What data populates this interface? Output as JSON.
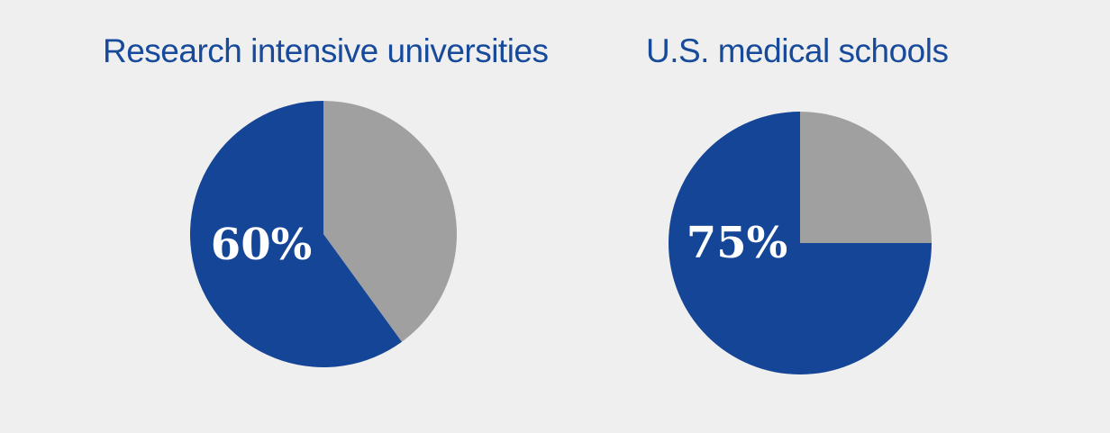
{
  "chart_data": [
    {
      "type": "pie",
      "title": "Research intensive universities",
      "slices": [
        {
          "value": 60,
          "color": "#154597"
        },
        {
          "value": 40,
          "color": "#a0a0a0"
        }
      ],
      "data_label": "60%"
    },
    {
      "type": "pie",
      "title": "U.S. medical schools",
      "slices": [
        {
          "value": 75,
          "color": "#154597"
        },
        {
          "value": 25,
          "color": "#a0a0a0"
        }
      ],
      "data_label": "75%"
    }
  ],
  "colors": {
    "background": "#efefef",
    "title": "#174a9a",
    "label": "#ffffff"
  }
}
